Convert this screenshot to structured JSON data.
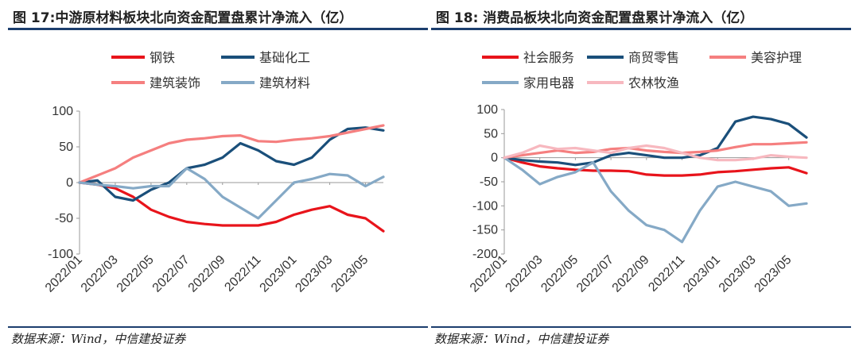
{
  "left": {
    "title": "图 17:中游原材料板块北向资金配置盘累计净流入（亿）",
    "source": "数据来源：Wind，中信建投证券",
    "chart_data": {
      "type": "line",
      "yticks": [
        -100,
        -50,
        0,
        50,
        100
      ],
      "ylim": [
        -100,
        100
      ],
      "xlim": [
        "2022/01",
        "2023/06"
      ],
      "xtick_labels": [
        "2022/01",
        "2022/03",
        "2022/05",
        "2022/07",
        "2022/09",
        "2022/11",
        "2023/01",
        "2023/03",
        "2023/05"
      ],
      "legend": {
        "position": "top",
        "rows": [
          [
            0,
            1
          ],
          [
            2,
            3
          ]
        ]
      },
      "grid": false,
      "series": [
        {
          "name": "钢铁",
          "color": "#e8141b",
          "points": [
            [
              "2022/01",
              0
            ],
            [
              "2022/02",
              -3
            ],
            [
              "2022/03",
              -8
            ],
            [
              "2022/04",
              -20
            ],
            [
              "2022/05",
              -38
            ],
            [
              "2022/06",
              -48
            ],
            [
              "2022/07",
              -55
            ],
            [
              "2022/08",
              -58
            ],
            [
              "2022/09",
              -60
            ],
            [
              "2022/10",
              -60
            ],
            [
              "2022/11",
              -60
            ],
            [
              "2022/12",
              -55
            ],
            [
              "2023/01",
              -45
            ],
            [
              "2023/02",
              -38
            ],
            [
              "2023/03",
              -33
            ],
            [
              "2023/04",
              -45
            ],
            [
              "2023/05",
              -50
            ],
            [
              "2023/06",
              -68
            ]
          ]
        },
        {
          "name": "基础化工",
          "color": "#1a4f7a",
          "points": [
            [
              "2022/01",
              0
            ],
            [
              "2022/02",
              3
            ],
            [
              "2022/03",
              -20
            ],
            [
              "2022/04",
              -25
            ],
            [
              "2022/05",
              -10
            ],
            [
              "2022/06",
              0
            ],
            [
              "2022/07",
              20
            ],
            [
              "2022/08",
              25
            ],
            [
              "2022/09",
              35
            ],
            [
              "2022/10",
              55
            ],
            [
              "2022/11",
              45
            ],
            [
              "2022/12",
              30
            ],
            [
              "2023/01",
              25
            ],
            [
              "2023/02",
              35
            ],
            [
              "2023/03",
              60
            ],
            [
              "2023/04",
              75
            ],
            [
              "2023/05",
              77
            ],
            [
              "2023/06",
              73
            ]
          ]
        },
        {
          "name": "建筑装饰",
          "color": "#f57f7f",
          "points": [
            [
              "2022/01",
              0
            ],
            [
              "2022/02",
              10
            ],
            [
              "2022/03",
              20
            ],
            [
              "2022/04",
              35
            ],
            [
              "2022/05",
              45
            ],
            [
              "2022/06",
              55
            ],
            [
              "2022/07",
              60
            ],
            [
              "2022/08",
              62
            ],
            [
              "2022/09",
              65
            ],
            [
              "2022/10",
              66
            ],
            [
              "2022/11",
              58
            ],
            [
              "2022/12",
              57
            ],
            [
              "2023/01",
              60
            ],
            [
              "2023/02",
              62
            ],
            [
              "2023/03",
              65
            ],
            [
              "2023/04",
              70
            ],
            [
              "2023/05",
              75
            ],
            [
              "2023/06",
              80
            ]
          ]
        },
        {
          "name": "建筑材料",
          "color": "#85a9c6",
          "points": [
            [
              "2022/01",
              0
            ],
            [
              "2022/02",
              -3
            ],
            [
              "2022/03",
              -5
            ],
            [
              "2022/04",
              -8
            ],
            [
              "2022/05",
              -5
            ],
            [
              "2022/06",
              -5
            ],
            [
              "2022/07",
              20
            ],
            [
              "2022/08",
              5
            ],
            [
              "2022/09",
              -20
            ],
            [
              "2022/10",
              -35
            ],
            [
              "2022/11",
              -50
            ],
            [
              "2022/12",
              -25
            ],
            [
              "2023/01",
              0
            ],
            [
              "2023/02",
              5
            ],
            [
              "2023/03",
              12
            ],
            [
              "2023/04",
              10
            ],
            [
              "2023/05",
              -5
            ],
            [
              "2023/06",
              8
            ]
          ]
        }
      ]
    }
  },
  "right": {
    "title": "图 18: 消费品板块北向资金配置盘累计净流入（亿）",
    "source": "数据来源：Wind，中信建投证券",
    "chart_data": {
      "type": "line",
      "yticks": [
        -200,
        -150,
        -100,
        -50,
        0,
        50,
        100
      ],
      "ylim": [
        -200,
        100
      ],
      "xlim": [
        "2022/01",
        "2023/06"
      ],
      "xtick_labels": [
        "2022/01",
        "2022/03",
        "2022/05",
        "2022/07",
        "2022/09",
        "2022/11",
        "2023/01",
        "2023/03",
        "2023/05"
      ],
      "legend": {
        "position": "top",
        "rows": [
          [
            0,
            1,
            2
          ],
          [
            3,
            4
          ]
        ]
      },
      "grid": false,
      "series": [
        {
          "name": "社会服务",
          "color": "#e8141b",
          "points": [
            [
              "2022/01",
              0
            ],
            [
              "2022/02",
              -10
            ],
            [
              "2022/03",
              -18
            ],
            [
              "2022/04",
              -22
            ],
            [
              "2022/05",
              -25
            ],
            [
              "2022/06",
              -27
            ],
            [
              "2022/07",
              -27
            ],
            [
              "2022/08",
              -28
            ],
            [
              "2022/09",
              -35
            ],
            [
              "2022/10",
              -37
            ],
            [
              "2022/11",
              -37
            ],
            [
              "2022/12",
              -35
            ],
            [
              "2023/01",
              -30
            ],
            [
              "2023/02",
              -28
            ],
            [
              "2023/03",
              -25
            ],
            [
              "2023/04",
              -22
            ],
            [
              "2023/05",
              -20
            ],
            [
              "2023/06",
              -32
            ]
          ]
        },
        {
          "name": "商贸零售",
          "color": "#1a4f7a",
          "points": [
            [
              "2022/01",
              0
            ],
            [
              "2022/02",
              -5
            ],
            [
              "2022/03",
              -8
            ],
            [
              "2022/04",
              -10
            ],
            [
              "2022/05",
              -15
            ],
            [
              "2022/06",
              -10
            ],
            [
              "2022/07",
              5
            ],
            [
              "2022/08",
              10
            ],
            [
              "2022/09",
              5
            ],
            [
              "2022/10",
              0
            ],
            [
              "2022/11",
              0
            ],
            [
              "2022/12",
              5
            ],
            [
              "2023/01",
              20
            ],
            [
              "2023/02",
              75
            ],
            [
              "2023/03",
              85
            ],
            [
              "2023/04",
              80
            ],
            [
              "2023/05",
              70
            ],
            [
              "2023/06",
              42
            ]
          ]
        },
        {
          "name": "美容护理",
          "color": "#f57f7f",
          "points": [
            [
              "2022/01",
              0
            ],
            [
              "2022/02",
              5
            ],
            [
              "2022/03",
              10
            ],
            [
              "2022/04",
              15
            ],
            [
              "2022/05",
              10
            ],
            [
              "2022/06",
              12
            ],
            [
              "2022/07",
              18
            ],
            [
              "2022/08",
              20
            ],
            [
              "2022/09",
              15
            ],
            [
              "2022/10",
              12
            ],
            [
              "2022/11",
              10
            ],
            [
              "2022/12",
              12
            ],
            [
              "2023/01",
              15
            ],
            [
              "2023/02",
              22
            ],
            [
              "2023/03",
              28
            ],
            [
              "2023/04",
              28
            ],
            [
              "2023/05",
              30
            ],
            [
              "2023/06",
              32
            ]
          ]
        },
        {
          "name": "家用电器",
          "color": "#85a9c6",
          "points": [
            [
              "2022/01",
              0
            ],
            [
              "2022/02",
              -25
            ],
            [
              "2022/03",
              -55
            ],
            [
              "2022/04",
              -40
            ],
            [
              "2022/05",
              -30
            ],
            [
              "2022/06",
              -10
            ],
            [
              "2022/07",
              -70
            ],
            [
              "2022/08",
              -110
            ],
            [
              "2022/09",
              -140
            ],
            [
              "2022/10",
              -150
            ],
            [
              "2022/11",
              -175
            ],
            [
              "2022/12",
              -110
            ],
            [
              "2023/01",
              -60
            ],
            [
              "2023/02",
              -50
            ],
            [
              "2023/03",
              -60
            ],
            [
              "2023/04",
              -70
            ],
            [
              "2023/05",
              -100
            ],
            [
              "2023/06",
              -95
            ]
          ]
        },
        {
          "name": "农林牧渔",
          "color": "#f7b8bf",
          "points": [
            [
              "2022/01",
              0
            ],
            [
              "2022/02",
              10
            ],
            [
              "2022/03",
              25
            ],
            [
              "2022/04",
              18
            ],
            [
              "2022/05",
              20
            ],
            [
              "2022/06",
              15
            ],
            [
              "2022/07",
              10
            ],
            [
              "2022/08",
              20
            ],
            [
              "2022/09",
              25
            ],
            [
              "2022/10",
              20
            ],
            [
              "2022/11",
              10
            ],
            [
              "2022/12",
              0
            ],
            [
              "2023/01",
              -5
            ],
            [
              "2023/02",
              -5
            ],
            [
              "2023/03",
              -2
            ],
            [
              "2023/04",
              5
            ],
            [
              "2023/05",
              2
            ],
            [
              "2023/06",
              0
            ]
          ]
        }
      ]
    }
  }
}
